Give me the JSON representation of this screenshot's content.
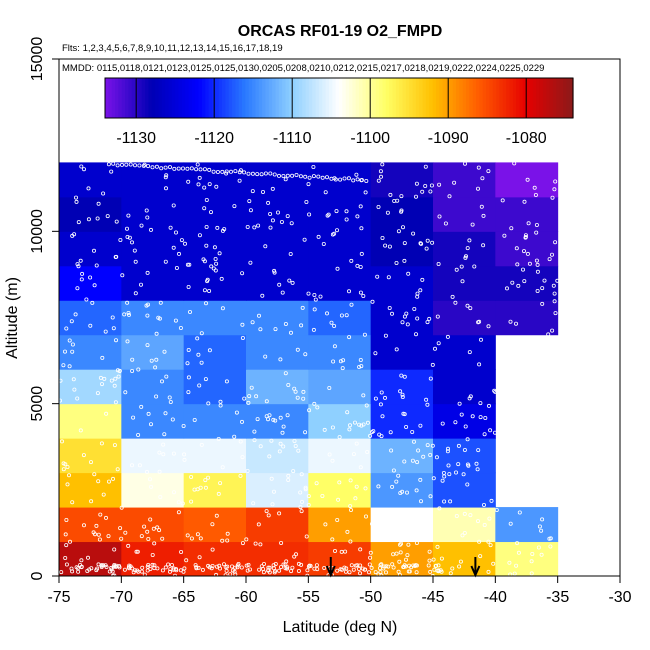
{
  "chart_data": {
    "type": "heatmap",
    "title": "ORCAS RF01-19 O2_FMPD",
    "flights_label": "Flts: 1,2,3,4,5,6,7,8,9,10,11,12,13,14,15,16,17,18,19",
    "dates_label": "MMDD: 0115,0118,0121,0123,0125,0125,0130,0205,0208,0210,0212,0215,0217,0218,0219,0222,0224,0225,0229",
    "xlabel": "Latitude (deg N)",
    "ylabel": "Altitude (m)",
    "xlim": [
      -75,
      -30
    ],
    "ylim": [
      0,
      15000
    ],
    "x_ticks": [
      -75,
      -70,
      -65,
      -60,
      -55,
      -50,
      -45,
      -40,
      -35,
      -30
    ],
    "y_ticks": [
      0,
      5000,
      10000,
      15000
    ],
    "colorbar": {
      "range": [
        -1134,
        -1074
      ],
      "ticks": [
        -1130,
        -1120,
        -1110,
        -1100,
        -1090,
        -1080
      ],
      "colors": [
        "#7a12e8",
        "#0000b4",
        "#0000ff",
        "#2a7aff",
        "#8fd0ff",
        "#ffffff",
        "#ffff66",
        "#ffc000",
        "#ff5a00",
        "#e60000",
        "#8b1a1a"
      ]
    },
    "x_bin_edges": [
      -75,
      -70,
      -65,
      -60,
      -55,
      -50,
      -45,
      -40,
      -35
    ],
    "y_bin_edges": [
      0,
      1000,
      2000,
      3000,
      4000,
      5000,
      6000,
      7000,
      8000,
      9000,
      10000,
      11000,
      12000
    ],
    "cells": [
      [
        -1077,
        -1082,
        -1083,
        -1083,
        -1084,
        -1090,
        -1092,
        -1099
      ],
      [
        -1085,
        -1085,
        -1086,
        -1084,
        -1090,
        -1104,
        -1101,
        -1114
      ],
      [
        -1092,
        -1103,
        -1097,
        -1106,
        -1098,
        -1114,
        -1118,
        null
      ],
      [
        -1095,
        -1105,
        -1105,
        -1107,
        -1105,
        -1112,
        -1118,
        null
      ],
      [
        -1099,
        -1115,
        -1115,
        -1115,
        -1110,
        -1120,
        -1124,
        null
      ],
      [
        -1109,
        -1115,
        -1117,
        -1112,
        -1113,
        -1120,
        -1126,
        null
      ],
      [
        -1115,
        -1113,
        -1117,
        -1115,
        -1115,
        -1126,
        -1126,
        null
      ],
      [
        -1117,
        -1115,
        -1115,
        -1115,
        -1117,
        -1126,
        -1130,
        -1130
      ],
      [
        -1122,
        -1126,
        -1126,
        -1126,
        -1126,
        -1126,
        -1129,
        -1129
      ],
      [
        -1126,
        -1126,
        -1126,
        -1126,
        -1126,
        -1128,
        -1129,
        -1131
      ],
      [
        -1128,
        -1126,
        -1126,
        -1126,
        -1126,
        -1128,
        -1131,
        -1131
      ],
      [
        -1126,
        -1126,
        -1126,
        -1126,
        -1126,
        -1129,
        -1131,
        -1134
      ]
    ],
    "arrows_at_latitude": [
      -53.2,
      -41.6
    ]
  }
}
